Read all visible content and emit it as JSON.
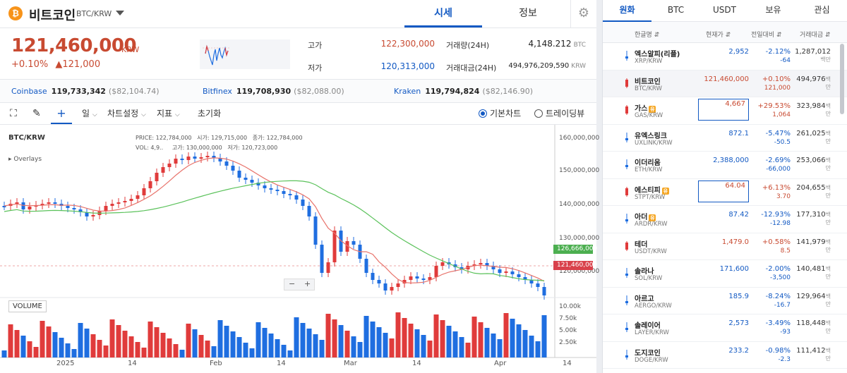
{
  "header": {
    "coin_symbol": "₿",
    "coin_name": "비트코인",
    "pair": "BTC/KRW",
    "tabs": [
      "시세",
      "정보"
    ],
    "settings_icon": "gear-icon"
  },
  "price": {
    "value": "121,460,000",
    "unit": "KRW",
    "change_pct": "+0.10%",
    "change_amt": "▲121,000"
  },
  "stats": {
    "high_label": "고가",
    "high": "122,300,000",
    "low_label": "저가",
    "low": "120,313,000",
    "vol_label": "거래량(24H)",
    "vol": "4,148.212",
    "vol_unit": "BTC",
    "amt_label": "거래대금(24H)",
    "amt": "494,976,209,590",
    "amt_unit": "KRW"
  },
  "exchanges": [
    {
      "name": "Coinbase",
      "price": "119,733,342",
      "usd": "($82,104.74)"
    },
    {
      "name": "Bitfinex",
      "price": "119,708,930",
      "usd": "($82,088.00)"
    },
    {
      "name": "Kraken",
      "price": "119,794,824",
      "usd": "($82,146.90)"
    }
  ],
  "toolbar": {
    "interval": "일",
    "chart_settings": "차트설정",
    "indicators": "지표",
    "reset": "초기화",
    "basic_chart": "기본차트",
    "tradingview": "트레이딩뷰"
  },
  "chart": {
    "symbol": "BTC/KRW",
    "overlays": "Overlays",
    "ohlc": {
      "price_label": "PRICE:",
      "price": "122,784,000",
      "open_label": "시가:",
      "open": "129,715,000",
      "high_label": "종가:",
      "high": "122,784,000",
      "vol_label": "VOL:",
      "vol": "4,9..",
      "low_label2": "고가:",
      "low2": "130,000,000",
      "low_label": "저가:",
      "low": "120,723,000"
    },
    "volume_label": "VOLUME",
    "zoom_minus": "−",
    "zoom_plus": "+",
    "tag_ma": "126,666,000",
    "tag_price": "121,460,000",
    "colors": {
      "up": "#e03b3b",
      "down": "#1f6ee0",
      "ma_short": "#e8736b",
      "ma_long": "#5bc25b",
      "tag_green": "#4caf50",
      "tag_red": "#d9414b"
    }
  },
  "chart_data": {
    "type": "candlestick",
    "y_ticks": [
      "160,000,000",
      "150,000,000",
      "140,000,000",
      "130,000,000",
      "120,000,000"
    ],
    "volume_ticks": [
      "10.00k",
      "7.50k",
      "5.00k",
      "2.50k"
    ],
    "x_ticks": [
      "2025",
      "14",
      "Feb",
      "14",
      "Mar",
      "14",
      "Apr",
      "14"
    ],
    "ylim": [
      115000000,
      162000000
    ]
  },
  "market": {
    "tabs": [
      "원화",
      "BTC",
      "USDT",
      "보유",
      "관심"
    ],
    "columns": [
      "한글명 ⇵",
      "현재가 ⇵",
      "전일대비 ⇵",
      "거래대금 ⇵"
    ],
    "rows": [
      {
        "name": "엑스알피(리플)",
        "pair": "XRP/KRW",
        "price": "2,952",
        "pct": "-2.12%",
        "diff": "-64",
        "amt": "1,287,012",
        "unit": "백만",
        "dir": "dn",
        "badge": "",
        "box": false,
        "hl": false
      },
      {
        "name": "비트코인",
        "pair": "BTC/KRW",
        "price": "121,460,000",
        "pct": "+0.10%",
        "diff": "121,000",
        "amt": "494,976",
        "unit": "백만",
        "dir": "up",
        "badge": "",
        "box": false,
        "hl": true
      },
      {
        "name": "가스",
        "pair": "GAS/KRW",
        "price": "4,667",
        "pct": "+29.53%",
        "diff": "1,064",
        "amt": "323,984",
        "unit": "백만",
        "dir": "up",
        "badge": "유",
        "box": true,
        "hl": false
      },
      {
        "name": "유엑스링크",
        "pair": "UXLINK/KRW",
        "price": "872.1",
        "pct": "-5.47%",
        "diff": "-50.5",
        "amt": "261,025",
        "unit": "백만",
        "dir": "dn",
        "badge": "",
        "box": false,
        "hl": false
      },
      {
        "name": "이더리움",
        "pair": "ETH/KRW",
        "price": "2,388,000",
        "pct": "-2.69%",
        "diff": "-66,000",
        "amt": "253,066",
        "unit": "백만",
        "dir": "dn",
        "badge": "",
        "box": false,
        "hl": false
      },
      {
        "name": "에스티피",
        "pair": "STPT/KRW",
        "price": "64.04",
        "pct": "+6.13%",
        "diff": "3.70",
        "amt": "204,655",
        "unit": "백만",
        "dir": "up",
        "badge": "유",
        "box": true,
        "hl": false
      },
      {
        "name": "아더",
        "pair": "ARDR/KRW",
        "price": "87.42",
        "pct": "-12.93%",
        "diff": "-12.98",
        "amt": "177,310",
        "unit": "백만",
        "dir": "dn",
        "badge": "유",
        "box": false,
        "hl": false
      },
      {
        "name": "테더",
        "pair": "USDT/KRW",
        "price": "1,479.0",
        "pct": "+0.58%",
        "diff": "8.5",
        "amt": "141,979",
        "unit": "백만",
        "dir": "up",
        "badge": "",
        "box": false,
        "hl": false
      },
      {
        "name": "솔라나",
        "pair": "SOL/KRW",
        "price": "171,600",
        "pct": "-2.00%",
        "diff": "-3,500",
        "amt": "140,481",
        "unit": "백만",
        "dir": "dn",
        "badge": "",
        "box": false,
        "hl": false
      },
      {
        "name": "아르고",
        "pair": "AERGO/KRW",
        "price": "185.9",
        "pct": "-8.24%",
        "diff": "-16.7",
        "amt": "129,964",
        "unit": "백만",
        "dir": "dn",
        "badge": "",
        "box": false,
        "hl": false
      },
      {
        "name": "솔레이어",
        "pair": "LAYER/KRW",
        "price": "2,573",
        "pct": "-3.49%",
        "diff": "-93",
        "amt": "118,448",
        "unit": "백만",
        "dir": "dn",
        "badge": "",
        "box": false,
        "hl": false
      },
      {
        "name": "도지코인",
        "pair": "DOGE/KRW",
        "price": "233.2",
        "pct": "-0.98%",
        "diff": "-2.3",
        "amt": "111,412",
        "unit": "백만",
        "dir": "dn",
        "badge": "",
        "box": false,
        "hl": false
      }
    ]
  }
}
